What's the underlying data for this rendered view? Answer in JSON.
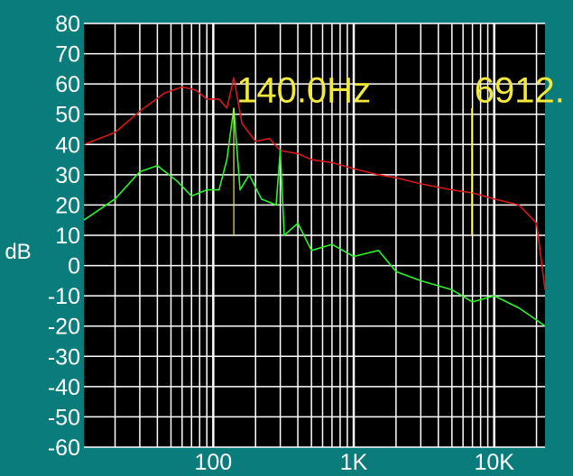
{
  "chart_data": {
    "type": "line",
    "ylabel": "dB",
    "xscale": "log",
    "xlim": [
      12,
      23000
    ],
    "ylim": [
      -60,
      80
    ],
    "grid": true,
    "legend": "none",
    "y_ticks": [
      80,
      70,
      60,
      50,
      40,
      30,
      20,
      10,
      0,
      -10,
      -20,
      -30,
      -40,
      -50,
      -60
    ],
    "x_ticks": [
      {
        "value": 100,
        "label": "100"
      },
      {
        "value": 1000,
        "label": "1K"
      },
      {
        "value": 10000,
        "label": "10K"
      }
    ],
    "series": [
      {
        "color": "#d81818",
        "points": [
          [
            12,
            40
          ],
          [
            20,
            44
          ],
          [
            30,
            51
          ],
          [
            45,
            57
          ],
          [
            60,
            59
          ],
          [
            75,
            58
          ],
          [
            90,
            55
          ],
          [
            110,
            55
          ],
          [
            125,
            52
          ],
          [
            140,
            62
          ],
          [
            160,
            47
          ],
          [
            200,
            41
          ],
          [
            250,
            42
          ],
          [
            300,
            38
          ],
          [
            400,
            37
          ],
          [
            500,
            35
          ],
          [
            700,
            34
          ],
          [
            1000,
            32
          ],
          [
            1500,
            30
          ],
          [
            2000,
            29
          ],
          [
            3000,
            27
          ],
          [
            5000,
            25
          ],
          [
            7000,
            24
          ],
          [
            10000,
            22
          ],
          [
            15000,
            20
          ],
          [
            20000,
            14
          ],
          [
            23000,
            -8
          ]
        ]
      },
      {
        "color": "#2af52a",
        "points": [
          [
            12,
            15
          ],
          [
            20,
            22
          ],
          [
            30,
            31
          ],
          [
            40,
            33
          ],
          [
            55,
            28
          ],
          [
            70,
            23
          ],
          [
            90,
            25
          ],
          [
            110,
            25
          ],
          [
            125,
            35
          ],
          [
            140,
            52
          ],
          [
            155,
            25
          ],
          [
            180,
            30
          ],
          [
            220,
            22
          ],
          [
            280,
            20
          ],
          [
            300,
            38
          ],
          [
            320,
            10
          ],
          [
            400,
            14
          ],
          [
            500,
            5
          ],
          [
            700,
            7
          ],
          [
            1000,
            3
          ],
          [
            1500,
            5
          ],
          [
            2000,
            -2
          ],
          [
            3000,
            -5
          ],
          [
            5000,
            -8
          ],
          [
            7000,
            -12
          ],
          [
            10000,
            -10
          ],
          [
            15000,
            -14
          ],
          [
            20000,
            -18
          ],
          [
            23000,
            -20
          ]
        ]
      }
    ],
    "markers": [
      {
        "label": "140.0Hz",
        "x": 140,
        "color": "#f2e93a"
      },
      {
        "label": "6912.",
        "x": 6912,
        "color": "#f2e93a"
      }
    ]
  }
}
